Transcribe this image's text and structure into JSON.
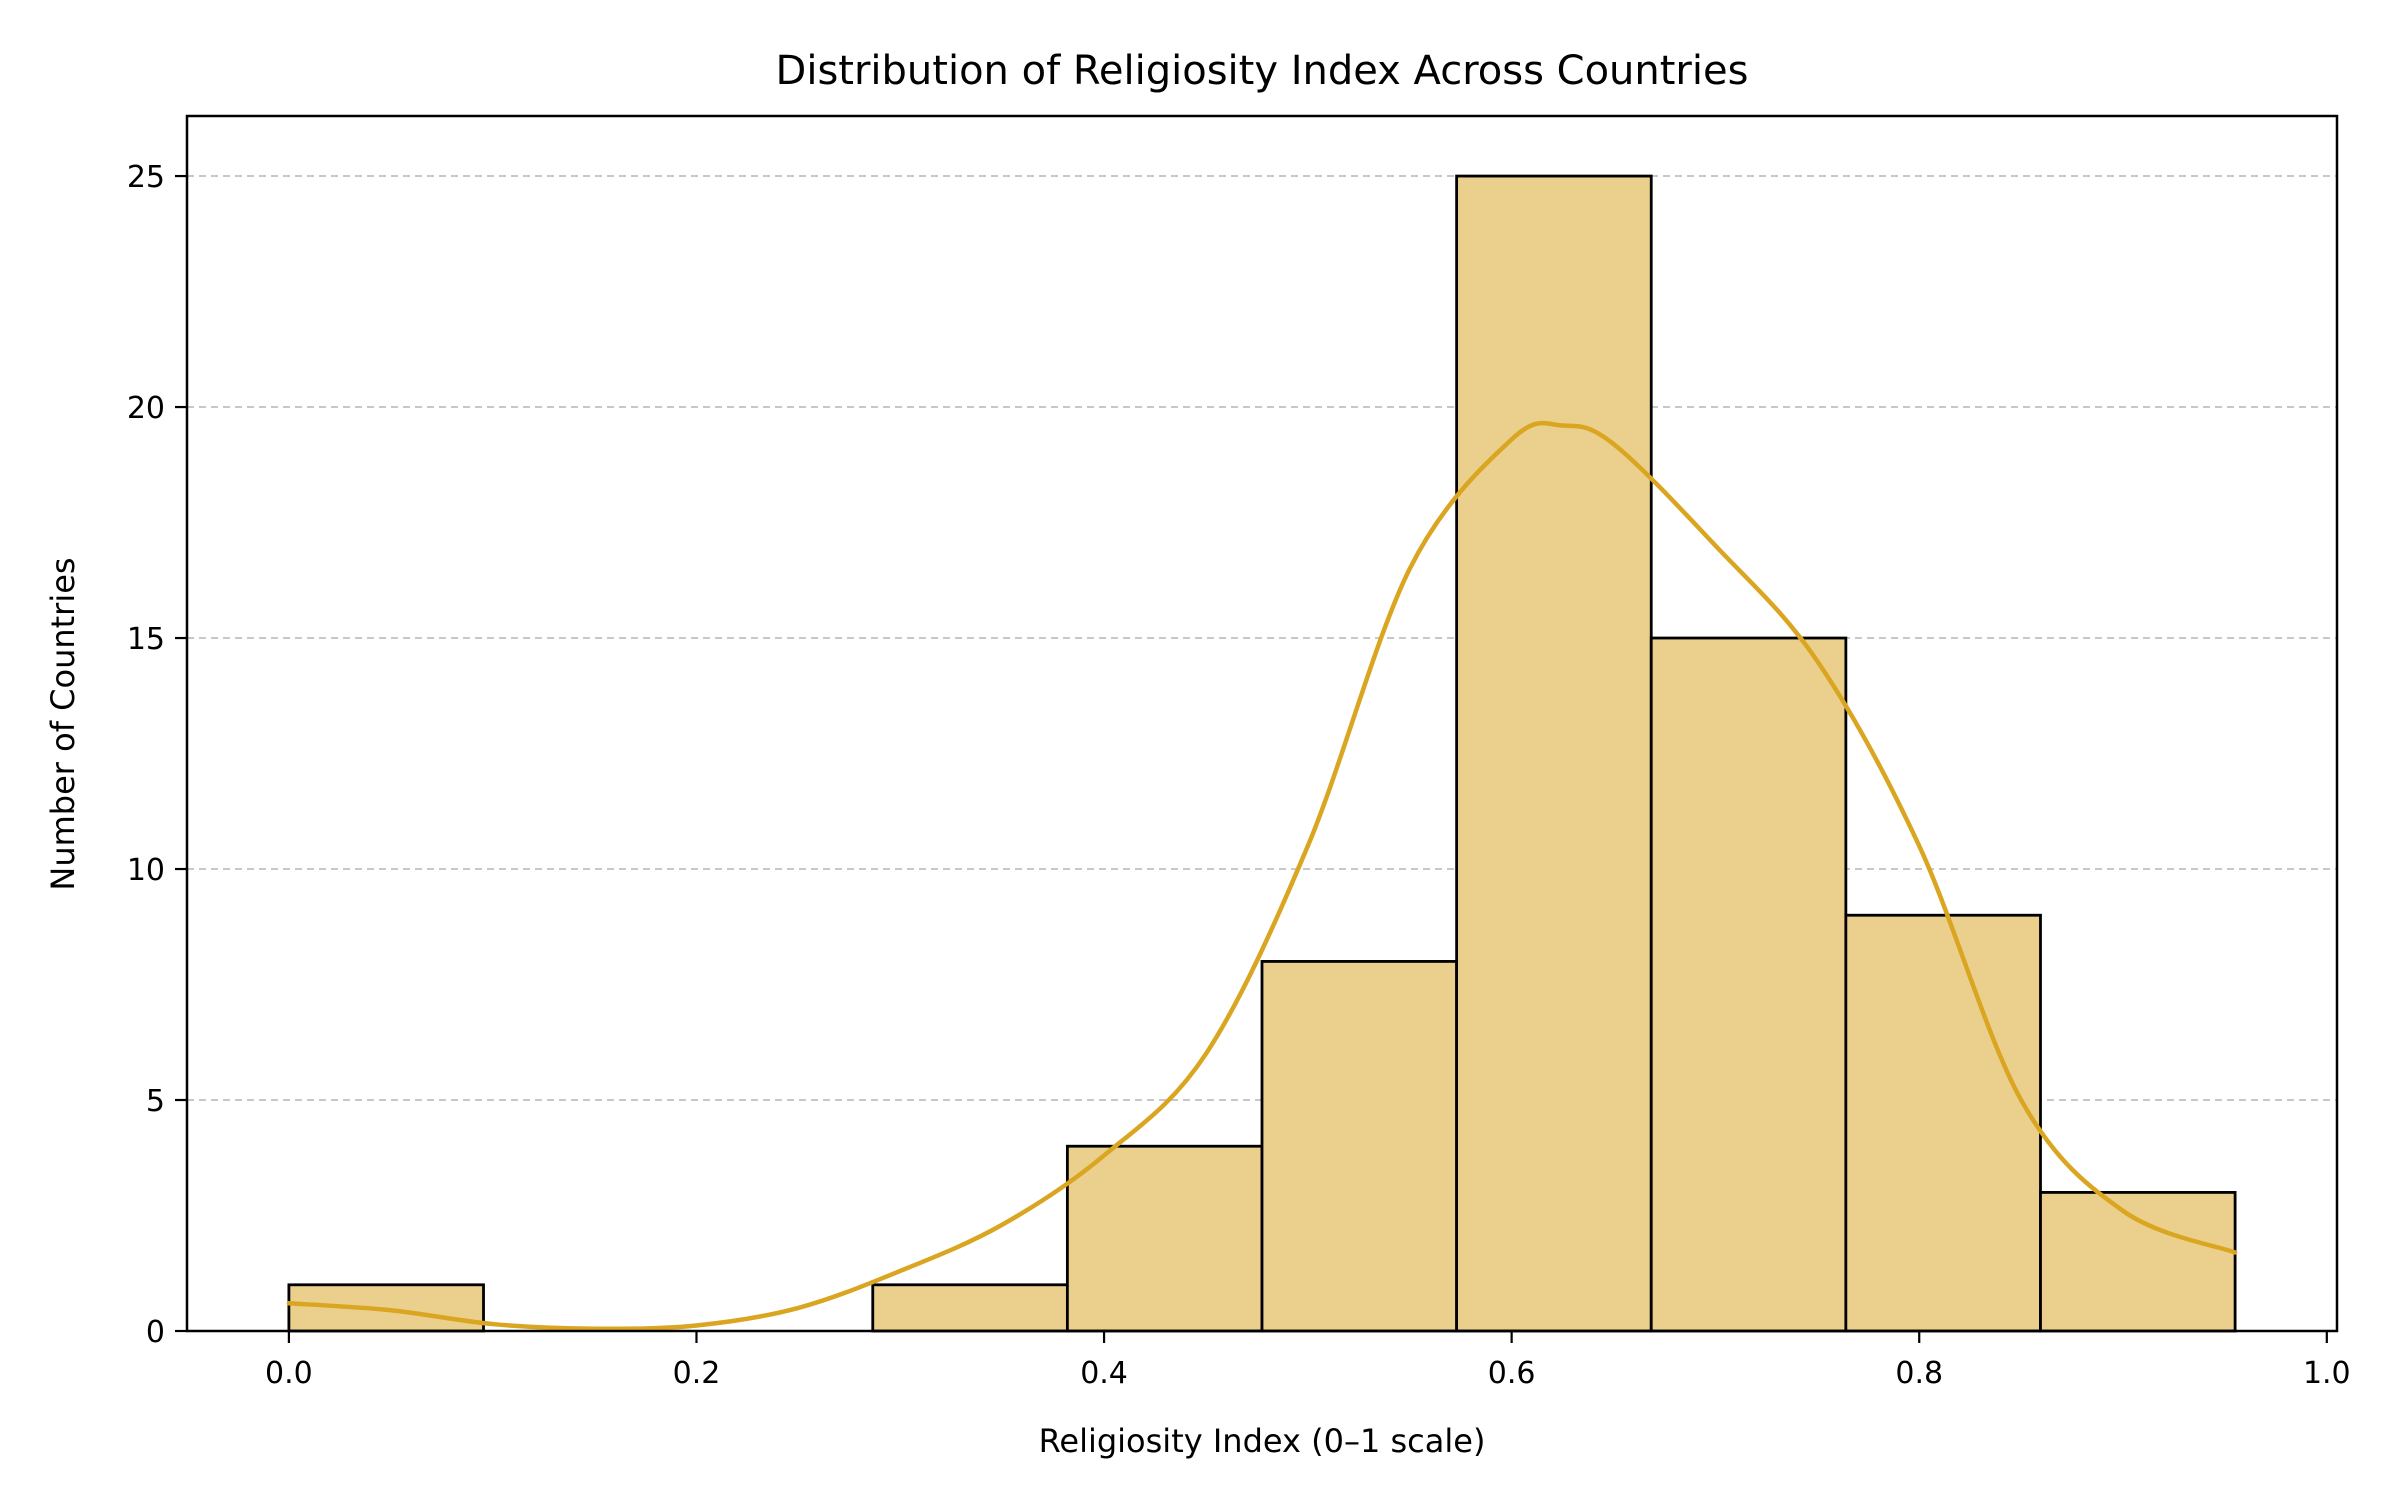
{
  "chart_data": {
    "type": "bar",
    "title": "Distribution of Religiosity Index Across Countries",
    "xlabel": "Religiosity Index (0–1 scale)",
    "ylabel": "Number of Countries",
    "xlim": [
      -0.05,
      1.005
    ],
    "ylim": [
      0,
      26.3
    ],
    "x_ticks": [
      0.0,
      0.2,
      0.4,
      0.6,
      0.8,
      1.0
    ],
    "x_tick_labels": [
      "0.0",
      "0.2",
      "0.4",
      "0.6",
      "0.8",
      "1.0"
    ],
    "y_ticks": [
      0,
      5,
      10,
      15,
      20,
      25
    ],
    "y_tick_labels": [
      "0",
      "5",
      "10",
      "15",
      "20",
      "25"
    ],
    "grid": "y-dashed",
    "bins": [
      {
        "x0": 0.0,
        "x1": 0.0955,
        "count": 1
      },
      {
        "x0": 0.0955,
        "x1": 0.191,
        "count": 0
      },
      {
        "x0": 0.191,
        "x1": 0.2865,
        "count": 0
      },
      {
        "x0": 0.2865,
        "x1": 0.382,
        "count": 1
      },
      {
        "x0": 0.382,
        "x1": 0.4775,
        "count": 4
      },
      {
        "x0": 0.4775,
        "x1": 0.573,
        "count": 8
      },
      {
        "x0": 0.573,
        "x1": 0.6685,
        "count": 25
      },
      {
        "x0": 0.6685,
        "x1": 0.764,
        "count": 15
      },
      {
        "x0": 0.764,
        "x1": 0.8595,
        "count": 9
      },
      {
        "x0": 0.8595,
        "x1": 0.955,
        "count": 3
      }
    ],
    "kde": {
      "x": [
        0.0,
        0.05,
        0.1,
        0.15,
        0.2,
        0.25,
        0.3,
        0.35,
        0.4,
        0.45,
        0.5,
        0.55,
        0.6,
        0.625,
        0.65,
        0.7,
        0.75,
        0.8,
        0.85,
        0.9,
        0.955
      ],
      "y": [
        0.6,
        0.45,
        0.15,
        0.05,
        0.12,
        0.5,
        1.3,
        2.3,
        3.8,
        6.0,
        10.5,
        16.5,
        19.3,
        19.6,
        19.2,
        17.0,
        14.5,
        10.5,
        5.0,
        2.6,
        1.7
      ]
    },
    "colors": {
      "bar_fill": "#ebd08d",
      "bar_edge": "#000000",
      "kde_line": "#daa520",
      "grid": "#c8c8c8"
    }
  }
}
